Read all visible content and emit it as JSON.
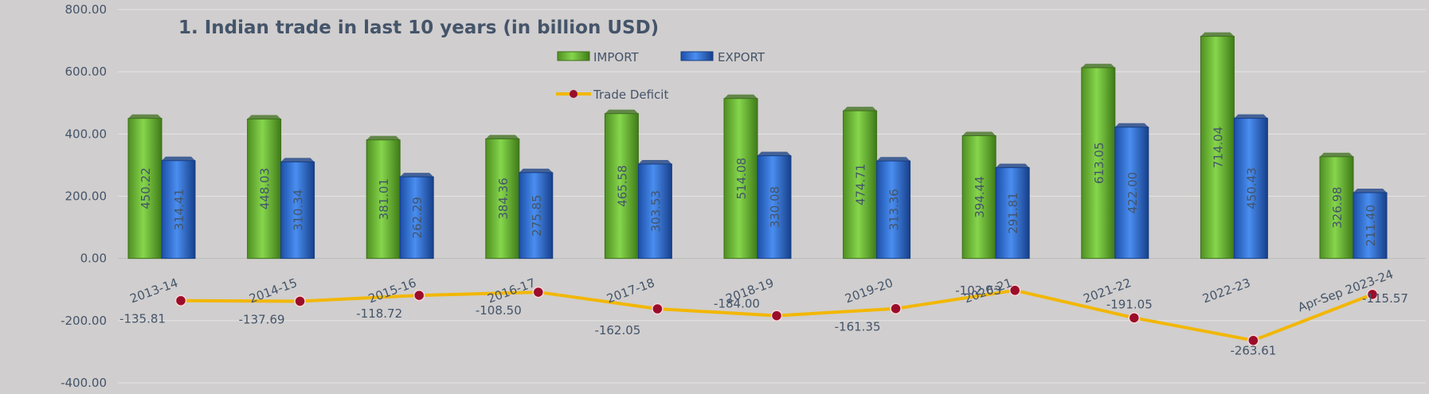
{
  "chart_data": {
    "type": "bar",
    "title": "1. Indian trade in last 10 years (in billion USD)",
    "categories": [
      "2013-14",
      "2014-15",
      "2015-16",
      "2016-17",
      "2017-18",
      "2018-19",
      "2019-20",
      "2020-21",
      "2021-22",
      "2022-23",
      "Apr-Sep 2023-24"
    ],
    "series": [
      {
        "name": "IMPORT",
        "type": "bar",
        "color": "#6fbf3a",
        "values": [
          450.22,
          448.03,
          381.01,
          384.36,
          465.58,
          514.08,
          474.71,
          394.44,
          613.05,
          714.04,
          326.98
        ],
        "labels": [
          "450.22",
          "448.03",
          "381.01",
          "384.36",
          "465.58",
          "514.08",
          "474.71",
          "394.44",
          "613.05",
          "714.04",
          "326.98"
        ]
      },
      {
        "name": "EXPORT",
        "type": "bar",
        "color": "#2e6fd6",
        "values": [
          314.41,
          310.34,
          262.29,
          275.85,
          303.53,
          330.08,
          313.36,
          291.81,
          422.0,
          450.43,
          211.4
        ],
        "labels": [
          "314.41",
          "310.34",
          "262.29",
          "275.85",
          "303.53",
          "330.08",
          "313.36",
          "291.81",
          "422.00",
          "450.43",
          "211.40"
        ]
      },
      {
        "name": "Trade Deficit",
        "type": "line",
        "color": "#f2b705",
        "marker_color": "#9b0d2a",
        "values": [
          -135.81,
          -137.69,
          -118.72,
          -108.5,
          -162.05,
          -184.0,
          -161.35,
          -102.63,
          -191.05,
          -263.61,
          -115.57
        ],
        "labels": [
          "-135.81",
          "-137.69",
          "-118.72",
          "-108.50",
          "-162.05",
          "-184.00",
          "-161.35",
          "-102.63",
          "-191.05",
          "-263.61",
          "-115.57"
        ]
      }
    ],
    "y_ticks": [
      "800.00",
      "600.00",
      "400.00",
      "200.00",
      "0.00",
      "-200.00",
      "-400.00"
    ],
    "ylim": [
      -400,
      800
    ],
    "grid": true,
    "legend_position": "top-center"
  }
}
